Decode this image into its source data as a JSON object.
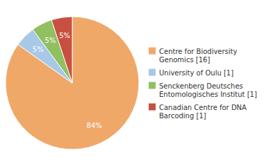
{
  "chart_data": {
    "type": "pie",
    "categories": [
      "Centre for Biodiversity\nGenomics [16]",
      "University of Oulu [1]",
      "Senckenberg Deutsches\nEntomologisches Institut [1]",
      "Canadian Centre for DNA\nBarcoding [1]"
    ],
    "values": [
      84,
      5,
      5,
      5
    ],
    "value_labels": [
      "84%",
      "5%",
      "5%",
      "5%"
    ],
    "colors": [
      "#f0a868",
      "#a8c8e8",
      "#90c060",
      "#c85040"
    ],
    "data_labels": true,
    "legend": "right"
  }
}
